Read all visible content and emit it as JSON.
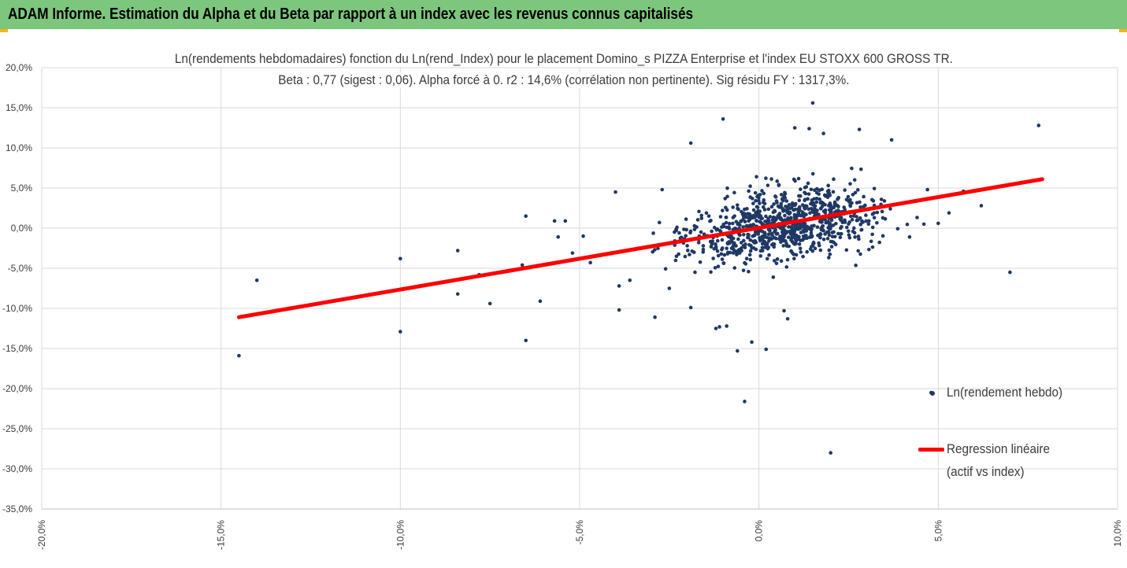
{
  "header": {
    "title": "ADAM Informe. Estimation du Alpha et du Beta par rapport à un index avec les revenus connus capitalisés",
    "background": "#7dc67d",
    "corner_color": "#f2b51e"
  },
  "chart_data": {
    "type": "scatter",
    "title": "Ln(rendements hebdomadaires) fonction du Ln(rend_Index) pour le placement Domino_s PIZZA Enterprise et l'index EU STOXX 600 GROSS TR.",
    "subtitle": "Beta : 0,77 (sigest : 0,06). Alpha forcé à 0. r2 : 14,6% (corrélation non pertinente). Sig résidu FY : 1317,3%.",
    "xlim": [
      -20,
      10
    ],
    "ylim": [
      -35,
      20
    ],
    "x_ticks": [
      -20,
      -15,
      -10,
      -5,
      0,
      5,
      10
    ],
    "y_ticks": [
      20,
      15,
      10,
      5,
      0,
      -5,
      -10,
      -15,
      -20,
      -25,
      -30,
      -35
    ],
    "x_tick_labels": [
      "-20,0%",
      "-15,0%",
      "-10,0%",
      "-5,0%",
      "0,0%",
      "5,0%",
      "10,0%"
    ],
    "y_tick_labels": [
      "20,0%",
      "15,0%",
      "10,0%",
      "5,0%",
      "0,0%",
      "-5,0%",
      "-10,0%",
      "-15,0%",
      "-20,0%",
      "-25,0%",
      "-30,0%",
      "-35,0%"
    ],
    "vertical_grid": true,
    "horizontal_grid": true,
    "legend_position": "right",
    "series": [
      {
        "name": "Ln(rendement hebdo)",
        "kind": "scatter",
        "color": "#1f3864",
        "points": [
          [
            -14.5,
            -15.9
          ],
          [
            -14.0,
            -6.5
          ],
          [
            -10.0,
            -3.8
          ],
          [
            -10.0,
            -12.9
          ],
          [
            -8.4,
            -2.8
          ],
          [
            -8.4,
            -8.2
          ],
          [
            -7.5,
            -9.4
          ],
          [
            -7.8,
            -5.8
          ],
          [
            -6.5,
            1.5
          ],
          [
            -6.5,
            -14.0
          ],
          [
            -6.1,
            -9.1
          ],
          [
            -6.6,
            -5.0
          ],
          [
            -6.6,
            -4.6
          ],
          [
            -5.7,
            0.9
          ],
          [
            -5.6,
            -1.1
          ],
          [
            -5.4,
            0.9
          ],
          [
            -5.2,
            -3.1
          ],
          [
            -4.9,
            -1.0
          ],
          [
            -4.7,
            -4.3
          ],
          [
            -4.0,
            4.5
          ],
          [
            -3.9,
            -10.2
          ],
          [
            -3.9,
            -7.2
          ],
          [
            -3.6,
            -6.5
          ],
          [
            -2.9,
            -11.1
          ],
          [
            -2.7,
            4.8
          ],
          [
            -2.5,
            -7.5
          ],
          [
            -2.3,
            -3.5
          ],
          [
            -1.9,
            10.6
          ],
          [
            -1.9,
            -9.9
          ],
          [
            -1.2,
            -12.5
          ],
          [
            -1.0,
            13.6
          ],
          [
            -1.1,
            -12.3
          ],
          [
            -0.9,
            -12.2
          ],
          [
            -0.6,
            -15.3
          ],
          [
            -0.4,
            -21.6
          ],
          [
            -0.2,
            -14.2
          ],
          [
            0.2,
            -15.1
          ],
          [
            0.7,
            -10.3
          ],
          [
            0.8,
            -11.3
          ],
          [
            1.5,
            15.6
          ],
          [
            1.0,
            12.5
          ],
          [
            1.4,
            12.4
          ],
          [
            2.8,
            12.3
          ],
          [
            1.8,
            11.8
          ],
          [
            3.7,
            11.0
          ],
          [
            7.8,
            12.8
          ],
          [
            5.7,
            4.6
          ],
          [
            6.2,
            2.8
          ],
          [
            5.3,
            1.9
          ],
          [
            5.0,
            0.6
          ],
          [
            7.0,
            -5.5
          ],
          [
            4.8,
            -20.5
          ],
          [
            2.0,
            -28.0
          ],
          [
            4.2,
            -1.1
          ],
          [
            4.6,
            0.5
          ],
          [
            4.7,
            4.8
          ]
        ]
      },
      {
        "name": "Regression linéaire (actif vs index)",
        "name_line1": "Regression linéaire",
        "name_line2": "(actif vs index)",
        "kind": "line",
        "color": "#ff0000",
        "x": [
          -14.5,
          7.9
        ],
        "y": [
          -11.1,
          6.1
        ]
      }
    ],
    "cluster": {
      "description_x_center": 0.7,
      "y_center": 0.3,
      "count": 900,
      "x_spread": 1.9,
      "y_spread": 3.0,
      "beta": 0.77
    }
  }
}
